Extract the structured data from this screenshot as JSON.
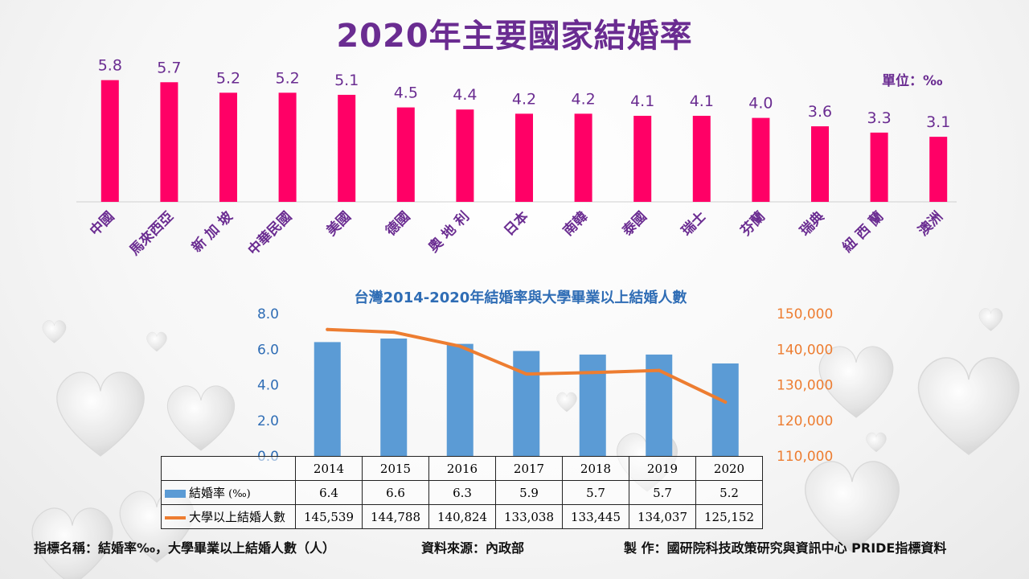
{
  "title": "2020年主要國家結婚率",
  "unit": "單位：‰",
  "colors": {
    "title": "#6a2c91",
    "bar_top": "#ff0066",
    "bar_bottom": "#5b9bd5",
    "line": "#ed7d31",
    "subtitle": "#2f6db5"
  },
  "chart_data": [
    {
      "type": "bar",
      "title": "2020年主要國家結婚率",
      "categories": [
        "中國",
        "馬來西亞",
        "新 加 坡",
        "中華民國",
        "美國",
        "德國",
        "奧 地 利",
        "日本",
        "南韓",
        "泰國",
        "瑞士",
        "芬蘭",
        "瑞典",
        "紐 西 蘭",
        "澳洲"
      ],
      "values": [
        5.8,
        5.7,
        5.2,
        5.2,
        5.1,
        4.5,
        4.4,
        4.2,
        4.2,
        4.1,
        4.1,
        4.0,
        3.6,
        3.3,
        3.1
      ],
      "value_labels": [
        "5.8",
        "5.7",
        "5.2",
        "5.2",
        "5.1",
        "4.5",
        "4.4",
        "4.2",
        "4.2",
        "4.1",
        "4.1",
        "4.0",
        "3.6",
        "3.3",
        "3.1"
      ],
      "ylim": [
        0,
        6.4
      ],
      "grid": false
    },
    {
      "type": "bar+line",
      "title": "台灣2014-2020年結婚率與大學畢業以上結婚人數",
      "categories": [
        "2014",
        "2015",
        "2016",
        "2017",
        "2018",
        "2019",
        "2020"
      ],
      "series": [
        {
          "name": "結婚率",
          "name_suffix": " (‰)",
          "type": "bar",
          "axis": "left",
          "values": [
            6.4,
            6.6,
            6.3,
            5.9,
            5.7,
            5.7,
            5.2
          ],
          "labels": [
            "6.4",
            "6.6",
            "6.3",
            "5.9",
            "5.7",
            "5.7",
            "5.2"
          ]
        },
        {
          "name": "大學以上結婚人數",
          "type": "line",
          "axis": "right",
          "values": [
            145539,
            144788,
            140824,
            133038,
            133445,
            134037,
            125152
          ],
          "labels": [
            "145,539",
            "144,788",
            "140,824",
            "133,038",
            "133,445",
            "134,037",
            "125,152"
          ]
        }
      ],
      "y_left": {
        "lim": [
          0,
          8
        ],
        "ticks": [
          "0.0",
          "2.0",
          "4.0",
          "6.0",
          "8.0"
        ]
      },
      "y_right": {
        "lim": [
          110000,
          150000
        ],
        "ticks": [
          "110,000",
          "120,000",
          "130,000",
          "140,000",
          "150,000"
        ]
      },
      "grid": false,
      "legend": "table"
    }
  ],
  "footer": {
    "indicator": "指標名稱：結婚率‰，大學畢業以上結婚人數（人）",
    "source": "資料來源：內政部",
    "producer": "製  作：國研院科技政策研究與資訊中心 PRIDE指標資料"
  }
}
